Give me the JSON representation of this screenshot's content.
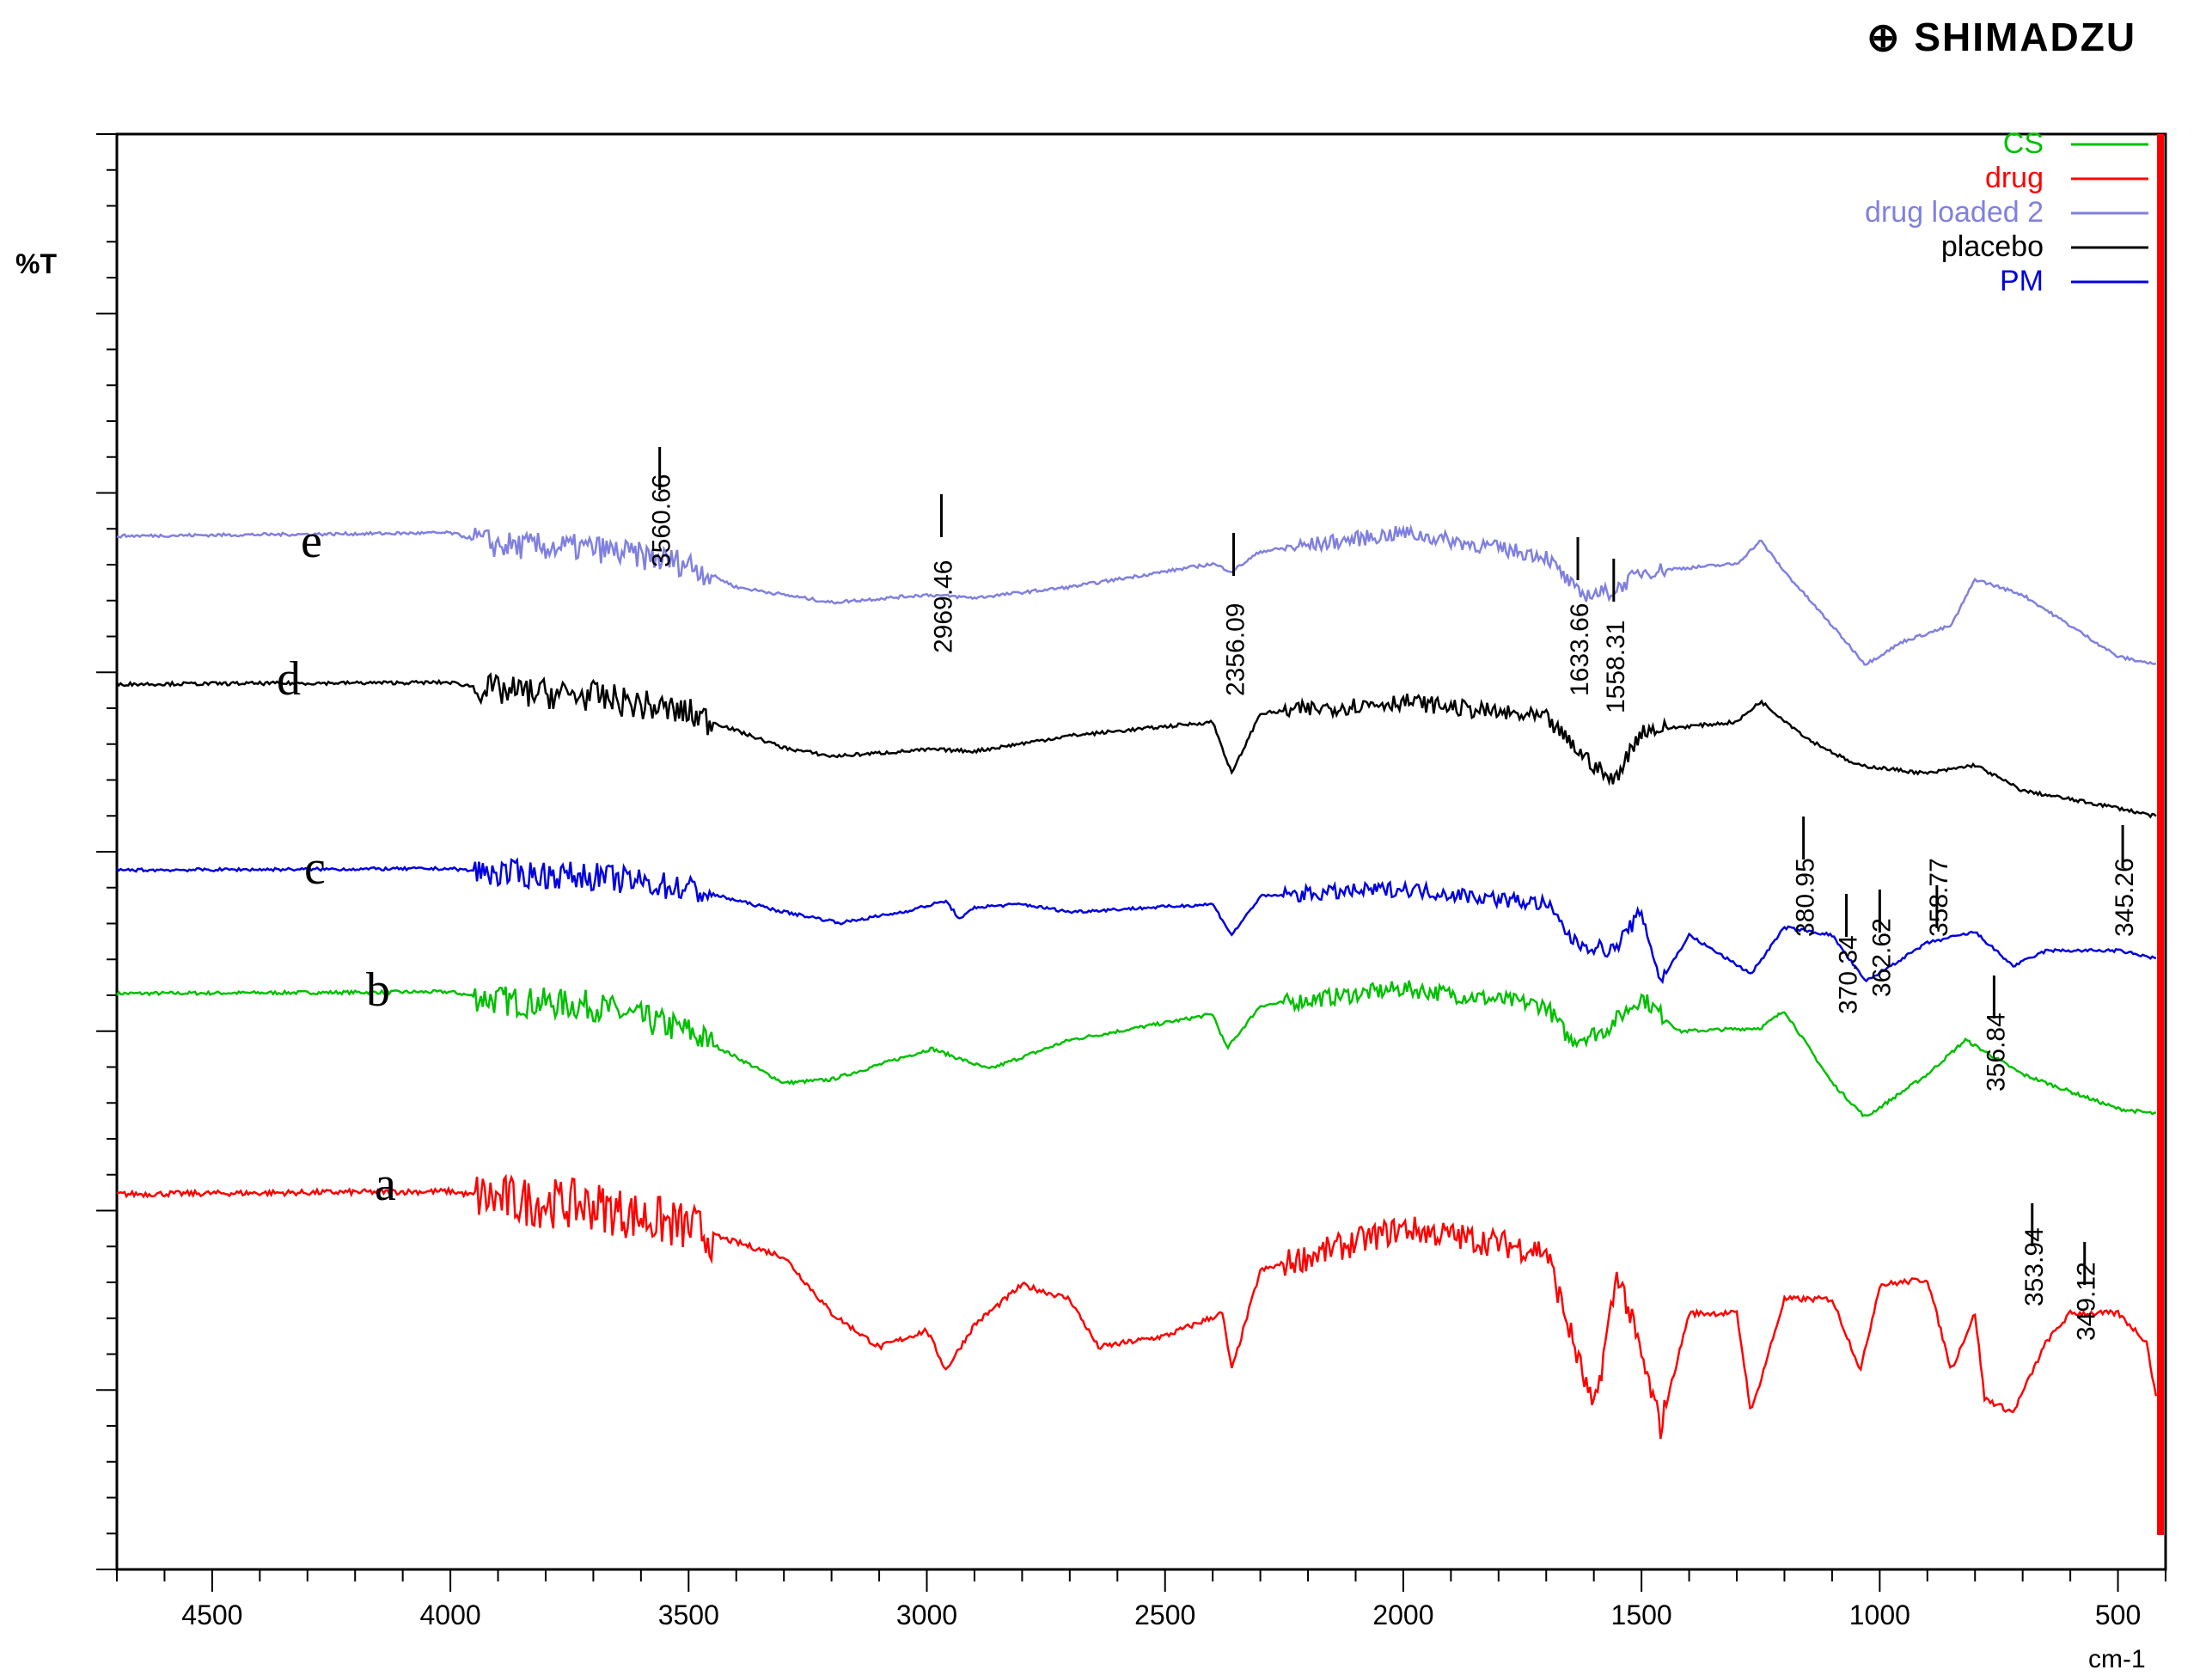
{
  "brand": {
    "logo": "SHIMADZU",
    "icon": "shimadzu-logo-icon"
  },
  "chart_data": {
    "type": "line",
    "ylabel": "%T",
    "xlabel": "cm-1",
    "xlim": [
      4700,
      400
    ],
    "x_reversed": true,
    "y_ticks_labeled": false,
    "grid": false,
    "legend_position": "top-right",
    "xticks": [
      4500,
      4000,
      3500,
      3000,
      2500,
      2000,
      1500,
      1000,
      500
    ],
    "series": [
      {
        "name": "CS",
        "trace_label": "b",
        "color": "#00c000",
        "points": [
          [
            4700,
            0.82
          ],
          [
            4000,
            0.83
          ],
          [
            3900,
            0.78
          ],
          [
            3700,
            0.75
          ],
          [
            3500,
            0.6
          ],
          [
            3300,
            0.3
          ],
          [
            3200,
            0.32
          ],
          [
            2990,
            0.5
          ],
          [
            2870,
            0.38
          ],
          [
            2700,
            0.55
          ],
          [
            2400,
            0.7
          ],
          [
            2370,
            0.5
          ],
          [
            2300,
            0.75
          ],
          [
            2000,
            0.85
          ],
          [
            1700,
            0.75
          ],
          [
            1650,
            0.55
          ],
          [
            1580,
            0.6
          ],
          [
            1500,
            0.8
          ],
          [
            1420,
            0.6
          ],
          [
            1250,
            0.62
          ],
          [
            1200,
            0.72
          ],
          [
            1100,
            0.3
          ],
          [
            1030,
            0.1
          ],
          [
            900,
            0.35
          ],
          [
            820,
            0.55
          ],
          [
            700,
            0.35
          ],
          [
            500,
            0.15
          ],
          [
            420,
            0.12
          ]
        ]
      },
      {
        "name": "drug",
        "trace_label": "a",
        "color": "#ff0000",
        "points": [
          [
            4700,
            0.82
          ],
          [
            4000,
            0.83
          ],
          [
            3900,
            0.8
          ],
          [
            3700,
            0.78
          ],
          [
            3500,
            0.7
          ],
          [
            3300,
            0.6
          ],
          [
            3200,
            0.4
          ],
          [
            3100,
            0.28
          ],
          [
            3000,
            0.34
          ],
          [
            2960,
            0.2
          ],
          [
            2900,
            0.36
          ],
          [
            2800,
            0.5
          ],
          [
            2700,
            0.45
          ],
          [
            2640,
            0.28
          ],
          [
            2500,
            0.32
          ],
          [
            2380,
            0.4
          ],
          [
            2360,
            0.2
          ],
          [
            2300,
            0.55
          ],
          [
            2000,
            0.7
          ],
          [
            1700,
            0.62
          ],
          [
            1600,
            0.05
          ],
          [
            1550,
            0.55
          ],
          [
            1460,
            0.0
          ],
          [
            1400,
            0.4
          ],
          [
            1300,
            0.4
          ],
          [
            1270,
            0.05
          ],
          [
            1200,
            0.45
          ],
          [
            1100,
            0.45
          ],
          [
            1040,
            0.2
          ],
          [
            1000,
            0.5
          ],
          [
            900,
            0.52
          ],
          [
            850,
            0.2
          ],
          [
            800,
            0.4
          ],
          [
            780,
            0.1
          ],
          [
            720,
            0.05
          ],
          [
            650,
            0.3
          ],
          [
            600,
            0.4
          ],
          [
            500,
            0.4
          ],
          [
            440,
            0.3
          ],
          [
            420,
            0.1
          ]
        ]
      },
      {
        "name": "drug loaded 2",
        "trace_label": "e",
        "color": "#8080e0",
        "points": [
          [
            4700,
            0.98
          ],
          [
            4000,
            1.0
          ],
          [
            3900,
            0.92
          ],
          [
            3700,
            0.9
          ],
          [
            3500,
            0.8
          ],
          [
            3400,
            0.65
          ],
          [
            3200,
            0.55
          ],
          [
            3000,
            0.6
          ],
          [
            2900,
            0.58
          ],
          [
            2700,
            0.65
          ],
          [
            2400,
            0.8
          ],
          [
            2360,
            0.75
          ],
          [
            2300,
            0.88
          ],
          [
            2000,
            1.0
          ],
          [
            1700,
            0.85
          ],
          [
            1630,
            0.6
          ],
          [
            1560,
            0.62
          ],
          [
            1500,
            0.75
          ],
          [
            1300,
            0.8
          ],
          [
            1250,
            0.95
          ],
          [
            1200,
            0.75
          ],
          [
            1100,
            0.4
          ],
          [
            1030,
            0.15
          ],
          [
            950,
            0.3
          ],
          [
            850,
            0.4
          ],
          [
            800,
            0.7
          ],
          [
            700,
            0.6
          ],
          [
            500,
            0.2
          ],
          [
            420,
            0.15
          ]
        ]
      },
      {
        "name": "placebo",
        "trace_label": "d",
        "color": "#000000",
        "points": [
          [
            4700,
            0.92
          ],
          [
            4000,
            0.93
          ],
          [
            3900,
            0.88
          ],
          [
            3700,
            0.85
          ],
          [
            3500,
            0.75
          ],
          [
            3300,
            0.55
          ],
          [
            3200,
            0.5
          ],
          [
            2990,
            0.54
          ],
          [
            2900,
            0.53
          ],
          [
            2700,
            0.62
          ],
          [
            2400,
            0.7
          ],
          [
            2360,
            0.4
          ],
          [
            2300,
            0.75
          ],
          [
            2000,
            0.82
          ],
          [
            1700,
            0.72
          ],
          [
            1640,
            0.55
          ],
          [
            1560,
            0.35
          ],
          [
            1500,
            0.65
          ],
          [
            1300,
            0.7
          ],
          [
            1250,
            0.82
          ],
          [
            1150,
            0.6
          ],
          [
            1050,
            0.45
          ],
          [
            900,
            0.4
          ],
          [
            800,
            0.45
          ],
          [
            700,
            0.3
          ],
          [
            500,
            0.2
          ],
          [
            420,
            0.15
          ]
        ]
      },
      {
        "name": "PM",
        "trace_label": "c",
        "color": "#0000e0",
        "points": [
          [
            4700,
            0.82
          ],
          [
            4000,
            0.83
          ],
          [
            3900,
            0.8
          ],
          [
            3700,
            0.78
          ],
          [
            3500,
            0.7
          ],
          [
            3300,
            0.55
          ],
          [
            3180,
            0.48
          ],
          [
            3050,
            0.55
          ],
          [
            2960,
            0.62
          ],
          [
            2930,
            0.5
          ],
          [
            2900,
            0.58
          ],
          [
            2800,
            0.6
          ],
          [
            2700,
            0.55
          ],
          [
            2400,
            0.6
          ],
          [
            2360,
            0.4
          ],
          [
            2300,
            0.65
          ],
          [
            2000,
            0.7
          ],
          [
            1700,
            0.6
          ],
          [
            1640,
            0.35
          ],
          [
            1560,
            0.3
          ],
          [
            1500,
            0.55
          ],
          [
            1460,
            0.1
          ],
          [
            1400,
            0.4
          ],
          [
            1270,
            0.15
          ],
          [
            1200,
            0.45
          ],
          [
            1100,
            0.4
          ],
          [
            1030,
            0.1
          ],
          [
            900,
            0.35
          ],
          [
            800,
            0.42
          ],
          [
            720,
            0.2
          ],
          [
            650,
            0.3
          ],
          [
            500,
            0.3
          ],
          [
            420,
            0.25
          ]
        ]
      }
    ],
    "trace_labels": [
      "e",
      "d",
      "c",
      "b",
      "a"
    ],
    "peak_annotations": [
      {
        "label": "3560.66",
        "x": 3560.66
      },
      {
        "label": "2969.46",
        "x": 2969.46
      },
      {
        "label": "2356.09",
        "x": 2356.09
      },
      {
        "label": "1633.66",
        "x": 1633.66
      },
      {
        "label": "1558.31",
        "x": 1558.31
      },
      {
        "label": "380.95",
        "x": 1160
      },
      {
        "label": "370.34",
        "x": 1070
      },
      {
        "label": "362.62",
        "x": 1000
      },
      {
        "label": "358.77",
        "x": 880
      },
      {
        "label": "356.84",
        "x": 760
      },
      {
        "label": "353.94",
        "x": 680
      },
      {
        "label": "349.12",
        "x": 570
      },
      {
        "label": "345.26",
        "x": 490
      }
    ]
  }
}
